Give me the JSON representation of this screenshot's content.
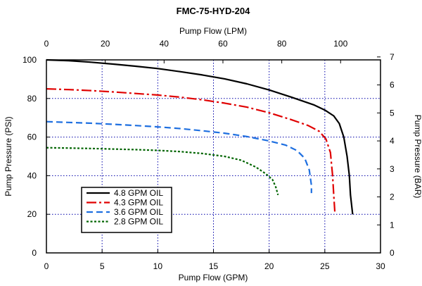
{
  "chart_data": {
    "type": "line",
    "title": "FMC-75-HYD-204",
    "xlabel": "Pump Flow (GPM)",
    "x2label": "Pump Flow (LPM)",
    "ylabel": "Pump Pressure (PSI)",
    "y2label": "Pump Pressure (BAR)",
    "xlim": [
      0,
      30
    ],
    "ylim": [
      0,
      100
    ],
    "x2lim": [
      0,
      113.56
    ],
    "y2lim": [
      0,
      6.895
    ],
    "xticks": [
      0,
      5,
      10,
      15,
      20,
      25,
      30
    ],
    "yticks": [
      0,
      20,
      40,
      60,
      80,
      100
    ],
    "x2ticks": [
      0,
      20,
      40,
      60,
      80,
      100
    ],
    "y2ticks": [
      0,
      1,
      2,
      3,
      4,
      5,
      6,
      7
    ],
    "grid": true,
    "legend_position": "bottom-left",
    "series": [
      {
        "name": "4.8 GPM OIL",
        "color": "#000000",
        "dash": "solid",
        "points": [
          [
            0,
            100
          ],
          [
            2,
            99.6
          ],
          [
            4,
            98.8
          ],
          [
            6,
            97.8
          ],
          [
            8,
            96.7
          ],
          [
            10,
            95.5
          ],
          [
            12,
            93.9
          ],
          [
            14,
            92.2
          ],
          [
            16,
            90.2
          ],
          [
            18,
            87.6
          ],
          [
            20,
            84.4
          ],
          [
            22,
            80.7
          ],
          [
            24,
            76.7
          ],
          [
            25,
            74.0
          ],
          [
            25.8,
            71.0
          ],
          [
            26.3,
            67.0
          ],
          [
            26.7,
            60.0
          ],
          [
            27.0,
            50.0
          ],
          [
            27.2,
            40.0
          ],
          [
            27.3,
            30.0
          ],
          [
            27.5,
            20.0
          ]
        ]
      },
      {
        "name": "4.3 GPM OIL",
        "color": "#e00000",
        "dash": "dashdot",
        "points": [
          [
            0,
            85
          ],
          [
            2,
            84.6
          ],
          [
            4,
            84.1
          ],
          [
            6,
            83.4
          ],
          [
            8,
            82.6
          ],
          [
            10,
            81.8
          ],
          [
            12,
            80.7
          ],
          [
            14,
            79.3
          ],
          [
            16,
            77.6
          ],
          [
            18,
            75.5
          ],
          [
            20,
            72.6
          ],
          [
            22,
            69.0
          ],
          [
            23.5,
            66.0
          ],
          [
            24.5,
            63.0
          ],
          [
            25.1,
            59.0
          ],
          [
            25.5,
            52.0
          ],
          [
            25.7,
            40.0
          ],
          [
            25.8,
            30.0
          ],
          [
            25.9,
            21.0
          ]
        ]
      },
      {
        "name": "3.6 GPM OIL",
        "color": "#1e6fe0",
        "dash": "dashed",
        "points": [
          [
            0,
            68
          ],
          [
            2,
            67.6
          ],
          [
            4,
            67.2
          ],
          [
            6,
            66.6
          ],
          [
            8,
            66.0
          ],
          [
            10,
            65.3
          ],
          [
            12,
            64.4
          ],
          [
            14,
            63.3
          ],
          [
            16,
            62.0
          ],
          [
            18,
            60.3
          ],
          [
            20,
            58.0
          ],
          [
            21.5,
            55.8
          ],
          [
            22.5,
            53.0
          ],
          [
            23.2,
            49.0
          ],
          [
            23.6,
            43.0
          ],
          [
            23.8,
            35.0
          ],
          [
            23.8,
            31.0
          ]
        ]
      },
      {
        "name": "2.8 GPM OIL",
        "color": "#006400",
        "dash": "dotted",
        "points": [
          [
            0,
            54.5
          ],
          [
            2,
            54.3
          ],
          [
            4,
            54.1
          ],
          [
            6,
            53.8
          ],
          [
            8,
            53.5
          ],
          [
            10,
            53.1
          ],
          [
            12,
            52.5
          ],
          [
            14,
            51.5
          ],
          [
            16,
            50.0
          ],
          [
            17.5,
            48.0
          ],
          [
            18.8,
            44.5
          ],
          [
            19.7,
            41.0
          ],
          [
            20.3,
            38.0
          ],
          [
            20.6,
            34.0
          ],
          [
            20.8,
            30.0
          ]
        ]
      }
    ]
  }
}
